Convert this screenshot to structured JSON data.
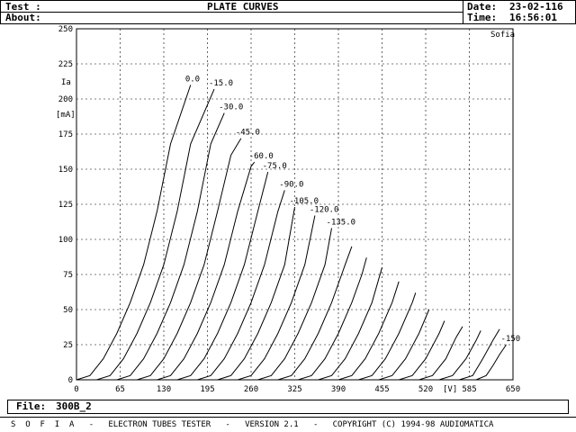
{
  "header": {
    "test_label": "Test :",
    "about_label": "About:",
    "title": "PLATE CURVES",
    "date_label": "Date:",
    "date_value": "23-02-116",
    "time_label": "Time:",
    "time_value": "16:56:01"
  },
  "file": {
    "label": "File:",
    "value": "300B_2"
  },
  "footer": {
    "text": "S  O  F  I  A   -   ELECTRON TUBES TESTER   -   VERSION 2.1   -   COPYRIGHT (C) 1994-98 AUDIOMATICA"
  },
  "chart_data": {
    "type": "line",
    "watermark": "Sofia",
    "ylabel": "Ia",
    "yunit": "[mA]",
    "xunit": "[V]",
    "xlim": [
      0,
      650
    ],
    "ylim": [
      0,
      250
    ],
    "xticks": [
      0,
      65,
      130,
      195,
      260,
      325,
      390,
      455,
      520,
      585,
      650
    ],
    "yticks": [
      0,
      25,
      50,
      75,
      100,
      125,
      150,
      175,
      200,
      225,
      250
    ],
    "grid": true,
    "series": [
      {
        "name": "0.0",
        "points": [
          [
            0,
            0
          ],
          [
            20,
            3
          ],
          [
            40,
            15
          ],
          [
            60,
            33
          ],
          [
            80,
            55
          ],
          [
            100,
            82
          ],
          [
            120,
            120
          ],
          [
            140,
            168
          ],
          [
            170,
            210
          ]
        ]
      },
      {
        "name": "-15.0",
        "points": [
          [
            30,
            0
          ],
          [
            50,
            3
          ],
          [
            70,
            15
          ],
          [
            90,
            33
          ],
          [
            110,
            55
          ],
          [
            130,
            82
          ],
          [
            150,
            120
          ],
          [
            170,
            168
          ],
          [
            205,
            207
          ]
        ]
      },
      {
        "name": "-30.0",
        "points": [
          [
            60,
            0
          ],
          [
            80,
            3
          ],
          [
            100,
            15
          ],
          [
            120,
            33
          ],
          [
            140,
            55
          ],
          [
            160,
            82
          ],
          [
            180,
            120
          ],
          [
            200,
            168
          ],
          [
            220,
            190
          ]
        ]
      },
      {
        "name": "-45.0",
        "points": [
          [
            90,
            0
          ],
          [
            110,
            3
          ],
          [
            130,
            15
          ],
          [
            150,
            33
          ],
          [
            170,
            55
          ],
          [
            190,
            82
          ],
          [
            210,
            120
          ],
          [
            230,
            160
          ],
          [
            245,
            172
          ]
        ]
      },
      {
        "name": "-60.0",
        "points": [
          [
            120,
            0
          ],
          [
            140,
            3
          ],
          [
            160,
            15
          ],
          [
            180,
            33
          ],
          [
            200,
            55
          ],
          [
            220,
            82
          ],
          [
            240,
            120
          ],
          [
            260,
            152
          ],
          [
            265,
            155
          ]
        ]
      },
      {
        "name": "-75.0",
        "points": [
          [
            150,
            0
          ],
          [
            170,
            3
          ],
          [
            190,
            15
          ],
          [
            210,
            33
          ],
          [
            230,
            55
          ],
          [
            250,
            82
          ],
          [
            270,
            120
          ],
          [
            285,
            148
          ]
        ]
      },
      {
        "name": "-90.0",
        "points": [
          [
            180,
            0
          ],
          [
            200,
            3
          ],
          [
            220,
            15
          ],
          [
            240,
            33
          ],
          [
            260,
            55
          ],
          [
            280,
            82
          ],
          [
            300,
            120
          ],
          [
            310,
            135
          ]
        ]
      },
      {
        "name": "-105.0",
        "points": [
          [
            210,
            0
          ],
          [
            230,
            3
          ],
          [
            250,
            15
          ],
          [
            270,
            33
          ],
          [
            290,
            55
          ],
          [
            310,
            82
          ],
          [
            325,
            123
          ]
        ]
      },
      {
        "name": "-120.0",
        "points": [
          [
            240,
            0
          ],
          [
            260,
            3
          ],
          [
            280,
            15
          ],
          [
            300,
            33
          ],
          [
            320,
            55
          ],
          [
            340,
            82
          ],
          [
            355,
            117
          ]
        ]
      },
      {
        "name": "-135.0",
        "points": [
          [
            270,
            0
          ],
          [
            290,
            3
          ],
          [
            310,
            15
          ],
          [
            330,
            33
          ],
          [
            350,
            55
          ],
          [
            370,
            82
          ],
          [
            380,
            108
          ]
        ]
      },
      {
        "name": "",
        "points": [
          [
            300,
            0
          ],
          [
            320,
            3
          ],
          [
            340,
            15
          ],
          [
            360,
            33
          ],
          [
            380,
            55
          ],
          [
            400,
            82
          ],
          [
            410,
            95
          ]
        ]
      },
      {
        "name": "",
        "points": [
          [
            330,
            0
          ],
          [
            350,
            3
          ],
          [
            370,
            15
          ],
          [
            390,
            33
          ],
          [
            410,
            55
          ],
          [
            425,
            75
          ],
          [
            432,
            87
          ]
        ]
      },
      {
        "name": "",
        "points": [
          [
            360,
            0
          ],
          [
            380,
            3
          ],
          [
            400,
            15
          ],
          [
            420,
            33
          ],
          [
            440,
            55
          ],
          [
            455,
            80
          ]
        ]
      },
      {
        "name": "",
        "points": [
          [
            390,
            0
          ],
          [
            410,
            3
          ],
          [
            430,
            15
          ],
          [
            450,
            33
          ],
          [
            470,
            55
          ],
          [
            480,
            70
          ]
        ]
      },
      {
        "name": "",
        "points": [
          [
            420,
            0
          ],
          [
            440,
            3
          ],
          [
            460,
            15
          ],
          [
            480,
            33
          ],
          [
            500,
            55
          ],
          [
            505,
            62
          ]
        ]
      },
      {
        "name": "",
        "points": [
          [
            450,
            0
          ],
          [
            470,
            3
          ],
          [
            490,
            15
          ],
          [
            510,
            33
          ],
          [
            525,
            50
          ]
        ]
      },
      {
        "name": "",
        "points": [
          [
            480,
            0
          ],
          [
            500,
            3
          ],
          [
            520,
            15
          ],
          [
            540,
            33
          ],
          [
            548,
            42
          ]
        ]
      },
      {
        "name": "",
        "points": [
          [
            510,
            0
          ],
          [
            530,
            3
          ],
          [
            550,
            15
          ],
          [
            565,
            30
          ],
          [
            575,
            38
          ]
        ]
      },
      {
        "name": "",
        "points": [
          [
            540,
            0
          ],
          [
            560,
            3
          ],
          [
            580,
            15
          ],
          [
            595,
            28
          ],
          [
            602,
            35
          ]
        ]
      },
      {
        "name": "",
        "points": [
          [
            570,
            0
          ],
          [
            590,
            3
          ],
          [
            605,
            15
          ],
          [
            620,
            28
          ],
          [
            630,
            36
          ]
        ]
      },
      {
        "name": "-150",
        "points": [
          [
            595,
            0
          ],
          [
            610,
            3
          ],
          [
            620,
            10
          ],
          [
            630,
            18
          ],
          [
            640,
            25
          ]
        ]
      }
    ]
  }
}
